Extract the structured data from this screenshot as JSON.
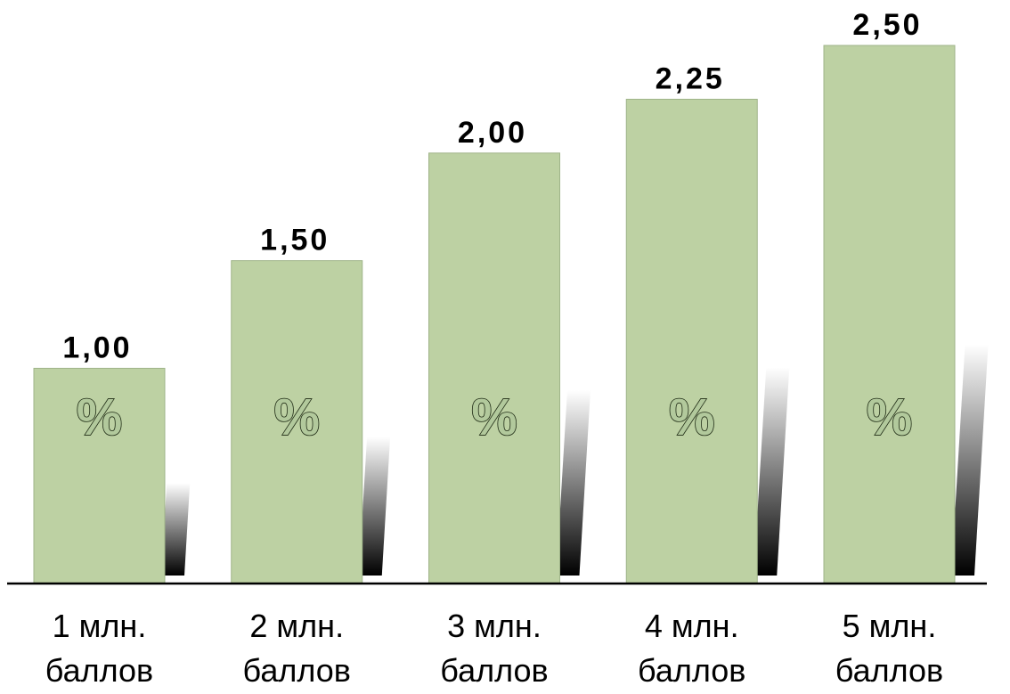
{
  "chart_data": {
    "type": "bar",
    "categories": [
      [
        "1 млн.",
        "баллов"
      ],
      [
        "2 млн.",
        "баллов"
      ],
      [
        "3 млн.",
        "баллов"
      ],
      [
        "4 млн.",
        "баллов"
      ],
      [
        "5  млн.",
        "баллов"
      ]
    ],
    "values": [
      1.0,
      1.5,
      2.0,
      2.25,
      2.5
    ],
    "value_labels": [
      "1,00",
      "1,50",
      "2,00",
      "2,25",
      "2,50"
    ],
    "bar_symbol": "%",
    "title": "",
    "xlabel": "",
    "ylabel": "",
    "ylim": [
      0,
      2.5
    ],
    "grid": false,
    "legend": "none",
    "colors": {
      "bar_fill": "#bdd1a3",
      "bar_border": "#9fb489",
      "axis": "#000000",
      "shadow_dark": "#000000",
      "shadow_light": "#ffffff"
    }
  }
}
